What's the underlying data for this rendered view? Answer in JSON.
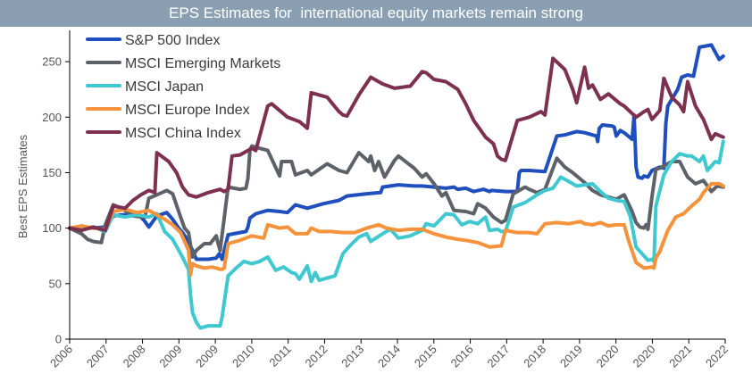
{
  "colors": {
    "title_bg": "#8aa0b2",
    "title_text": "#ffffff",
    "axis": "#000000",
    "tick_text": "#555555"
  },
  "chart_data": {
    "type": "line",
    "title": "EPS Estimates for  international equity markets remain strong",
    "xlabel": "",
    "ylabel": "Best EPS Estimates",
    "xlim": [
      2006.0,
      2022.55
    ],
    "ylim": [
      0,
      275
    ],
    "yticks": [
      0,
      50,
      100,
      150,
      200,
      250
    ],
    "xtick_labels": [
      "2006",
      "2007",
      "2008",
      "2009",
      "2009",
      "2010",
      "2011",
      "2012",
      "2013",
      "2014",
      "2015",
      "2016",
      "2017",
      "2018",
      "2019",
      "2020",
      "2020",
      "2021",
      "2022"
    ],
    "grid": false,
    "legend_position": "top-left",
    "series": [
      {
        "name": "S&P 500 Index",
        "color": "#1f4fbd",
        "x": [
          2006.0,
          2006.25,
          2006.6,
          2006.9,
          2007.1,
          2007.3,
          2007.6,
          2007.8,
          2007.9,
          2008.0,
          2008.2,
          2008.45,
          2008.6,
          2008.75,
          2008.85,
          2009.0,
          2009.2,
          2009.5,
          2009.7,
          2009.78,
          2009.85,
          2010.0,
          2010.3,
          2010.45,
          2010.5,
          2010.55,
          2010.7,
          2011.0,
          2011.3,
          2011.5,
          2011.7,
          2012.0,
          2012.4,
          2012.8,
          2013.0,
          2013.5,
          2013.85,
          2013.9,
          2014.3,
          2014.7,
          2014.9,
          2015.2,
          2015.5,
          2015.7,
          2015.8,
          2016.0,
          2016.2,
          2016.45,
          2016.6,
          2016.65,
          2017.0,
          2017.3,
          2017.35,
          2017.4,
          2017.55,
          2017.6,
          2018.0,
          2018.3,
          2018.5,
          2018.8,
          2019.0,
          2019.3,
          2019.33,
          2019.37,
          2019.45,
          2019.7,
          2019.75,
          2019.8,
          2019.9,
          2020.0,
          2020.2,
          2020.25,
          2020.3,
          2020.35,
          2020.45,
          2020.5,
          2020.6,
          2020.7,
          2020.9,
          2021.0,
          2021.05,
          2021.1,
          2021.35,
          2021.45,
          2021.6,
          2021.75,
          2021.9,
          2022.2,
          2022.4,
          2022.5
        ],
        "y": [
          100,
          101,
          100,
          101,
          111,
          112,
          112,
          110,
          106,
          101,
          111,
          114,
          108,
          100,
          96,
          88,
          72,
          72,
          73,
          77,
          72,
          94,
          96,
          97,
          101,
          109,
          113,
          116,
          115,
          114,
          121,
          118,
          122,
          125,
          129,
          131,
          132,
          137,
          139,
          138,
          138,
          137,
          136,
          137,
          135,
          136,
          133,
          135,
          133,
          134,
          133,
          133,
          150,
          152,
          152,
          152,
          151,
          183,
          184,
          187,
          186,
          183,
          178,
          190,
          193,
          192,
          191,
          183,
          188,
          186,
          180,
          202,
          155,
          146,
          145,
          147,
          146,
          152,
          155,
          154,
          194,
          210,
          225,
          236,
          238,
          237,
          263,
          265,
          252,
          255
        ]
      },
      {
        "name": "MSCI Emerging Markets",
        "color": "#5d6269",
        "x": [
          2006.0,
          2006.3,
          2006.45,
          2006.6,
          2006.8,
          2006.9,
          2007.1,
          2007.3,
          2007.6,
          2007.9,
          2008.0,
          2008.2,
          2008.45,
          2008.6,
          2008.8,
          2008.9,
          2009.0,
          2009.1,
          2009.2,
          2009.4,
          2009.55,
          2009.7,
          2009.75,
          2009.8,
          2010.0,
          2010.3,
          2010.45,
          2010.5,
          2010.55,
          2010.6,
          2010.7,
          2011.0,
          2011.3,
          2011.35,
          2011.6,
          2011.7,
          2012.0,
          2012.1,
          2012.3,
          2012.5,
          2012.8,
          2013.0,
          2013.3,
          2013.55,
          2013.6,
          2013.7,
          2013.8,
          2013.95,
          2014.2,
          2014.3,
          2014.7,
          2014.9,
          2015.0,
          2015.2,
          2015.4,
          2015.5,
          2015.7,
          2016.0,
          2016.2,
          2016.3,
          2016.5,
          2016.7,
          2016.9,
          2017.0,
          2017.2,
          2017.5,
          2017.6,
          2017.8,
          2018.0,
          2018.3,
          2018.5,
          2018.7,
          2018.9,
          2019.0,
          2019.2,
          2019.4,
          2019.6,
          2019.8,
          2020.0,
          2020.2,
          2020.3,
          2020.4,
          2020.5,
          2020.55,
          2020.6,
          2020.7,
          2020.8,
          2020.9,
          2021.0,
          2021.2,
          2021.4,
          2021.6,
          2021.8,
          2022.0,
          2022.2,
          2022.35,
          2022.5
        ],
        "y": [
          100,
          95,
          90,
          88,
          87,
          103,
          121,
          118,
          111,
          110,
          127,
          130,
          134,
          131,
          110,
          100,
          96,
          74,
          80,
          86,
          86,
          93,
          86,
          80,
          137,
          135,
          136,
          145,
          170,
          174,
          173,
          170,
          147,
          160,
          160,
          148,
          152,
          148,
          153,
          158,
          152,
          150,
          168,
          160,
          165,
          152,
          160,
          146,
          161,
          165,
          154,
          146,
          149,
          140,
          129,
          132,
          116,
          115,
          113,
          122,
          118,
          110,
          105,
          107,
          131,
          137,
          135,
          132,
          135,
          163,
          155,
          150,
          144,
          141,
          134,
          130,
          128,
          126,
          130,
          115,
          105,
          101,
          100,
          103,
          99,
          128,
          153,
          154,
          156,
          160,
          160,
          146,
          140,
          143,
          133,
          138,
          137
        ]
      },
      {
        "name": "MSCI Japan",
        "color": "#3fc8cf",
        "x": [
          2006.0,
          2006.3,
          2006.6,
          2006.9,
          2007.1,
          2007.4,
          2007.7,
          2008.0,
          2008.2,
          2008.4,
          2008.6,
          2008.8,
          2009.0,
          2009.05,
          2009.1,
          2009.2,
          2009.3,
          2009.5,
          2009.7,
          2009.8,
          2009.85,
          2010.0,
          2010.2,
          2010.4,
          2010.6,
          2010.8,
          2011.0,
          2011.2,
          2011.4,
          2011.6,
          2011.7,
          2011.8,
          2012.0,
          2012.1,
          2012.2,
          2012.3,
          2012.5,
          2012.7,
          2012.9,
          2013.1,
          2013.3,
          2013.5,
          2013.6,
          2013.9,
          2014.1,
          2014.3,
          2014.6,
          2014.9,
          2015.0,
          2015.2,
          2015.5,
          2015.7,
          2015.9,
          2016.1,
          2016.3,
          2016.5,
          2016.6,
          2016.8,
          2016.9,
          2017.0,
          2017.2,
          2017.5,
          2017.8,
          2018.0,
          2018.2,
          2018.4,
          2018.6,
          2018.8,
          2019.0,
          2019.2,
          2019.4,
          2019.6,
          2019.8,
          2020.0,
          2020.15,
          2020.3,
          2020.5,
          2020.6,
          2020.7,
          2020.75,
          2020.8,
          2021.0,
          2021.2,
          2021.4,
          2021.6,
          2021.7,
          2021.9,
          2022.0,
          2022.1,
          2022.3,
          2022.4,
          2022.5
        ],
        "y": [
          100,
          100,
          101,
          97,
          112,
          110,
          112,
          110,
          113,
          97,
          90,
          77,
          63,
          40,
          24,
          15,
          10,
          12,
          12,
          12,
          20,
          57,
          64,
          70,
          68,
          70,
          74,
          62,
          65,
          60,
          59,
          54,
          66,
          52,
          60,
          53,
          55,
          57,
          77,
          85,
          92,
          95,
          88,
          95,
          99,
          91,
          93,
          98,
          104,
          102,
          113,
          112,
          103,
          106,
          104,
          110,
          98,
          99,
          97,
          97,
          119,
          123,
          130,
          134,
          136,
          146,
          142,
          138,
          139,
          140,
          133,
          127,
          125,
          124,
          111,
          83,
          75,
          71,
          72,
          70,
          120,
          148,
          160,
          167,
          165,
          165,
          160,
          165,
          152,
          160,
          159,
          178
        ]
      },
      {
        "name": "MSCI Europe Index",
        "color": "#f5923c",
        "x": [
          2006.0,
          2006.3,
          2006.6,
          2006.9,
          2007.1,
          2007.4,
          2007.7,
          2008.0,
          2008.2,
          2008.4,
          2008.6,
          2008.8,
          2009.0,
          2009.05,
          2009.1,
          2009.2,
          2009.4,
          2009.6,
          2009.8,
          2009.85,
          2009.9,
          2010.0,
          2010.3,
          2010.6,
          2010.9,
          2011.0,
          2011.3,
          2011.5,
          2011.7,
          2012.0,
          2012.1,
          2012.3,
          2012.6,
          2012.9,
          2013.2,
          2013.5,
          2013.8,
          2014.0,
          2014.3,
          2014.6,
          2014.9,
          2015.2,
          2015.5,
          2015.8,
          2016.0,
          2016.3,
          2016.6,
          2016.9,
          2017.0,
          2017.3,
          2017.6,
          2017.8,
          2018.0,
          2018.3,
          2018.6,
          2018.9,
          2019.0,
          2019.2,
          2019.4,
          2019.6,
          2019.8,
          2020.0,
          2020.1,
          2020.3,
          2020.5,
          2020.7,
          2020.75,
          2020.8,
          2020.9,
          2021.1,
          2021.3,
          2021.5,
          2021.7,
          2021.9,
          2022.0,
          2022.2,
          2022.4,
          2022.5
        ],
        "y": [
          100,
          102,
          100,
          99,
          115,
          117,
          114,
          116,
          112,
          108,
          103,
          96,
          80,
          58,
          68,
          66,
          64,
          65,
          63,
          63,
          64,
          86,
          89,
          93,
          91,
          103,
          100,
          101,
          95,
          95,
          100,
          97,
          97,
          96,
          96,
          100,
          103,
          100,
          98,
          99,
          99,
          95,
          92,
          90,
          89,
          87,
          83,
          84,
          98,
          96,
          96,
          95,
          104,
          105,
          104,
          106,
          104,
          103,
          105,
          102,
          103,
          103,
          90,
          69,
          64,
          65,
          64,
          73,
          79,
          98,
          110,
          113,
          120,
          126,
          132,
          140,
          140,
          138
        ]
      },
      {
        "name": "MSCI China Index",
        "color": "#7d3050",
        "x": [
          2006.0,
          2006.3,
          2006.6,
          2006.9,
          2007.1,
          2007.4,
          2007.6,
          2007.8,
          2008.0,
          2008.15,
          2008.2,
          2008.5,
          2008.7,
          2008.85,
          2009.0,
          2009.2,
          2009.5,
          2009.8,
          2009.9,
          2010.0,
          2010.1,
          2010.3,
          2010.6,
          2010.7,
          2011.0,
          2011.1,
          2011.3,
          2011.5,
          2011.8,
          2012.0,
          2012.1,
          2012.3,
          2012.5,
          2012.8,
          2012.9,
          2013.0,
          2013.3,
          2013.6,
          2013.8,
          2013.9,
          2014.2,
          2014.6,
          2014.9,
          2015.0,
          2015.2,
          2015.5,
          2015.8,
          2016.0,
          2016.2,
          2016.5,
          2016.7,
          2016.8,
          2016.9,
          2017.0,
          2017.3,
          2017.6,
          2017.9,
          2018.0,
          2018.2,
          2018.5,
          2018.7,
          2018.8,
          2019.0,
          2019.1,
          2019.2,
          2019.4,
          2019.6,
          2019.9,
          2020.0,
          2020.3,
          2020.5,
          2020.6,
          2020.7,
          2020.9,
          2021.0,
          2021.2,
          2021.4,
          2021.5,
          2021.6,
          2021.8,
          2022.0,
          2022.2,
          2022.3,
          2022.5
        ],
        "y": [
          100,
          98,
          101,
          98,
          120,
          118,
          125,
          130,
          134,
          132,
          168,
          160,
          150,
          137,
          130,
          128,
          132,
          135,
          133,
          135,
          165,
          166,
          172,
          170,
          210,
          212,
          206,
          200,
          196,
          190,
          222,
          220,
          218,
          205,
          202,
          201,
          220,
          236,
          232,
          230,
          226,
          228,
          241,
          240,
          234,
          232,
          225,
          212,
          197,
          182,
          176,
          165,
          162,
          161,
          197,
          200,
          205,
          202,
          253,
          243,
          225,
          213,
          245,
          226,
          229,
          216,
          221,
          212,
          210,
          200,
          205,
          207,
          198,
          206,
          235,
          218,
          211,
          205,
          232,
          210,
          198,
          180,
          185,
          182
        ]
      }
    ]
  }
}
